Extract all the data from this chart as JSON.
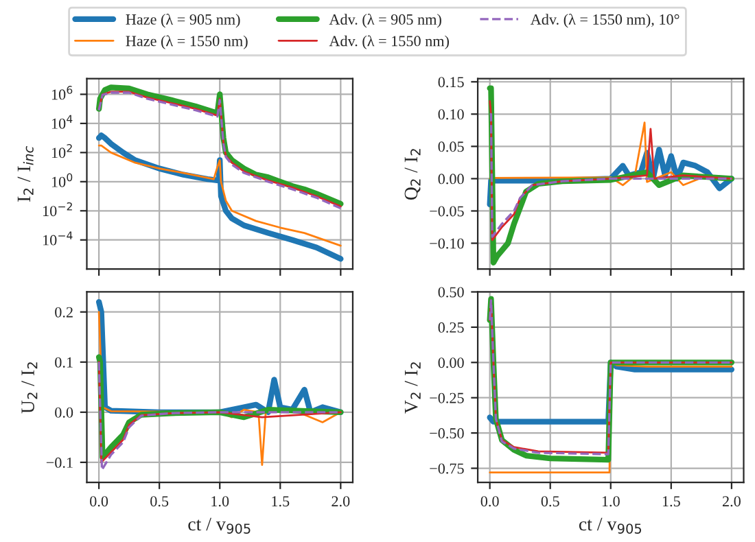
{
  "chart_data": [
    {
      "type": "line",
      "ylabel": "I$_{2}$ / I$_{inc}$",
      "log": "y",
      "xlim": [
        -0.1,
        2.1
      ],
      "xticks": [
        {
          "value": 0,
          "label": null
        },
        {
          "value": 0.5,
          "label": null
        },
        {
          "value": 1,
          "label": null
        },
        {
          "value": 1.5,
          "label": null
        },
        {
          "value": 2,
          "label": null
        }
      ],
      "ylim": [
        1e-06,
        12000000.0
      ],
      "yticks": [
        {
          "value": 0.0001,
          "label": "10$^{−4}$"
        },
        {
          "value": 0.01,
          "label": "10$^{−2}$"
        },
        {
          "value": 1,
          "label": "10$^{0}$"
        },
        {
          "value": 100,
          "label": "10$^{2}$"
        },
        {
          "value": 10000,
          "label": "10$^{4}$"
        },
        {
          "value": 1000000,
          "label": "10$^{6}$"
        }
      ],
      "grid": true,
      "legend": "top",
      "tick_labels": "y",
      "series": [
        {
          "name": "Haze (λ = 905 nm)",
          "color": "#1f77b4",
          "x": [
            0,
            0.02,
            0.05,
            0.1,
            0.2,
            0.3,
            0.5,
            0.7,
            0.9,
            0.99,
            1.0,
            1.01,
            1.05,
            1.1,
            1.2,
            1.4,
            1.6,
            1.8,
            2.0
          ],
          "values": [
            1000,
            1500,
            1000,
            400,
            100,
            30,
            8,
            3,
            1.5,
            1.2,
            30,
            0.1,
            0.01,
            0.003,
            0.001,
            0.0003,
            0.0001,
            3e-05,
            5e-06
          ]
        },
        {
          "name": "Haze (λ = 1550 nm)",
          "color": "#ff7f0e",
          "x": [
            0,
            0.02,
            0.1,
            0.3,
            0.5,
            0.7,
            0.95,
            0.98,
            1.0,
            1.01,
            1.05,
            1.1,
            1.3,
            1.5,
            1.7,
            2.0
          ],
          "values": [
            300,
            300,
            100,
            20,
            8,
            4,
            1.5,
            10,
            30,
            1,
            0.05,
            0.01,
            0.002,
            0.0007,
            0.0003,
            4e-05
          ]
        },
        {
          "name": "Adv. (λ = 905 nm)",
          "color": "#2ca02c",
          "x": [
            0,
            0.01,
            0.05,
            0.1,
            0.25,
            0.4,
            0.6,
            0.8,
            0.98,
            1.0,
            1.01,
            1.03,
            1.05,
            1.1,
            1.2,
            1.3,
            1.4,
            1.5,
            1.6,
            1.7,
            1.8,
            2.0
          ],
          "values": [
            100000,
            500000,
            2000000,
            3000000,
            2500000,
            1000000,
            400000,
            150000,
            50000,
            1000000,
            100000,
            1000,
            100,
            30,
            8,
            3,
            2,
            1,
            0.5,
            0.3,
            0.15,
            0.03
          ]
        },
        {
          "name": "Adv. (λ = 1550 nm)",
          "color": "#d62728",
          "x": [
            0,
            0.03,
            0.1,
            0.25,
            0.4,
            0.6,
            0.8,
            0.98,
            1.0,
            1.01,
            1.03,
            1.05,
            1.1,
            1.2,
            1.4,
            1.6,
            1.8,
            2.0
          ],
          "values": [
            100000,
            1000000,
            1500000,
            1500000,
            600000,
            250000,
            100000,
            35000,
            500000,
            50000,
            500,
            60,
            20,
            5,
            1.2,
            0.4,
            0.1,
            0.02
          ]
        },
        {
          "name": "Adv. (λ = 1550 nm), 10°",
          "color": "#9467bd",
          "line_style": "dashed",
          "x": [
            0,
            0.03,
            0.1,
            0.25,
            0.4,
            0.6,
            0.8,
            0.98,
            1.0,
            1.01,
            1.03,
            1.05,
            1.1,
            1.2,
            1.4,
            1.6,
            1.8,
            2.0
          ],
          "values": [
            80000,
            900000,
            1300000,
            1300000,
            500000,
            200000,
            80000,
            30000,
            400000,
            40000,
            400,
            50,
            15,
            4,
            1,
            0.3,
            0.08,
            0.015
          ]
        }
      ]
    },
    {
      "type": "line",
      "ylabel": "Q$_{2}$ / I$_{2}$",
      "xlim": [
        -0.1,
        2.1
      ],
      "xticks": [
        {
          "value": 0,
          "label": null
        },
        {
          "value": 0.5,
          "label": null
        },
        {
          "value": 1,
          "label": null
        },
        {
          "value": 1.5,
          "label": null
        },
        {
          "value": 2,
          "label": null
        }
      ],
      "ylim": [
        -0.14,
        0.155
      ],
      "yticks": [
        {
          "value": -0.1,
          "label": "−0.10"
        },
        {
          "value": -0.05,
          "label": "−0.05"
        },
        {
          "value": 0,
          "label": "0.00"
        },
        {
          "value": 0.05,
          "label": "0.05"
        },
        {
          "value": 0.1,
          "label": "0.10"
        },
        {
          "value": 0.15,
          "label": "0.15"
        }
      ],
      "grid": true,
      "tick_labels": "y",
      "series": [
        {
          "color": "#1f77b4",
          "x": [
            0,
            0.01,
            0.5,
            1.0,
            1.05,
            1.1,
            1.15,
            1.25,
            1.3,
            1.35,
            1.4,
            1.45,
            1.5,
            1.55,
            1.6,
            1.7,
            1.8,
            1.9,
            2.0
          ],
          "values": [
            -0.04,
            -0.003,
            -0.003,
            0.0,
            0.01,
            0.02,
            0.005,
            0.01,
            0.04,
            0.0,
            0.045,
            0.005,
            0.035,
            0.0,
            0.025,
            0.02,
            0.01,
            -0.015,
            0.0
          ]
        },
        {
          "color": "#ff7f0e",
          "x": [
            0,
            0.01,
            1.0,
            1.1,
            1.2,
            1.28,
            1.3,
            1.5,
            1.6,
            1.8,
            2.0
          ],
          "values": [
            0.0,
            0.001,
            0.002,
            -0.01,
            0.005,
            0.087,
            -0.005,
            0.01,
            -0.01,
            0.005,
            0.0
          ]
        },
        {
          "color": "#2ca02c",
          "x": [
            0,
            0.01,
            0.03,
            0.06,
            0.15,
            0.2,
            0.3,
            0.4,
            0.6,
            1.0,
            1.3,
            1.4,
            1.6,
            2.0
          ],
          "values": [
            0.14,
            0.14,
            -0.13,
            -0.12,
            -0.1,
            -0.07,
            -0.02,
            -0.008,
            -0.004,
            -0.002,
            0.01,
            -0.01,
            0.005,
            0.0
          ]
        },
        {
          "color": "#d62728",
          "x": [
            0,
            0.01,
            0.02,
            0.1,
            0.2,
            0.25,
            0.35,
            0.6,
            1.0,
            1.3,
            1.33,
            1.36,
            1.6,
            2.0
          ],
          "values": [
            0.12,
            0.1,
            -0.095,
            -0.075,
            -0.055,
            -0.03,
            -0.01,
            -0.004,
            0.0,
            0.005,
            0.077,
            0.0,
            0.005,
            0.0
          ]
        },
        {
          "color": "#9467bd",
          "line_style": "dashed",
          "x": [
            0,
            0.01,
            0.02,
            0.1,
            0.2,
            0.25,
            0.35,
            0.6,
            1.0,
            2.0
          ],
          "values": [
            0.1,
            0.1,
            -0.09,
            -0.07,
            -0.05,
            -0.03,
            -0.01,
            -0.004,
            0.0,
            0.0
          ]
        }
      ]
    },
    {
      "type": "line",
      "xlabel": "ct / v$_{905}$",
      "ylabel": "U$_{2}$ / I$_{2}$",
      "xlim": [
        -0.1,
        2.1
      ],
      "xticks": [
        {
          "value": 0,
          "label": "0.0"
        },
        {
          "value": 0.5,
          "label": "0.5"
        },
        {
          "value": 1,
          "label": "1.0"
        },
        {
          "value": 1.5,
          "label": "1.5"
        },
        {
          "value": 2,
          "label": "2.0"
        }
      ],
      "ylim": [
        -0.14,
        0.24
      ],
      "yticks": [
        {
          "value": -0.1,
          "label": "−0.1"
        },
        {
          "value": 0,
          "label": "0.0"
        },
        {
          "value": 0.1,
          "label": "0.1"
        },
        {
          "value": 0.2,
          "label": "0.2"
        }
      ],
      "grid": true,
      "series": [
        {
          "color": "#1f77b4",
          "x": [
            0,
            0.02,
            0.05,
            0.1,
            0.5,
            1.0,
            1.2,
            1.3,
            1.4,
            1.45,
            1.5,
            1.6,
            1.7,
            1.75,
            1.85,
            2.0
          ],
          "values": [
            0.22,
            0.2,
            0.01,
            0.003,
            0.0,
            0.0,
            0.01,
            0.015,
            0.0,
            0.065,
            0.01,
            0.005,
            0.045,
            0.0,
            0.01,
            0.0
          ]
        },
        {
          "color": "#ff7f0e",
          "x": [
            0,
            0.03,
            0.1,
            1.0,
            1.1,
            1.2,
            1.32,
            1.35,
            1.38,
            1.6,
            1.85,
            2.0
          ],
          "values": [
            0.2,
            0.01,
            0.002,
            0.0,
            -0.01,
            0.005,
            0.0,
            -0.105,
            0.0,
            0.005,
            -0.02,
            0.0
          ]
        },
        {
          "color": "#2ca02c",
          "x": [
            0,
            0.01,
            0.03,
            0.1,
            0.2,
            0.25,
            0.35,
            0.6,
            1.0,
            1.2,
            1.4,
            2.0
          ],
          "values": [
            0.11,
            0.1,
            -0.09,
            -0.07,
            -0.045,
            -0.02,
            -0.005,
            -0.002,
            0.0,
            -0.01,
            0.005,
            0.0
          ]
        },
        {
          "color": "#d62728",
          "x": [
            0,
            0.02,
            0.1,
            0.2,
            0.25,
            0.35,
            0.6,
            1.0,
            1.35,
            2.0
          ],
          "values": [
            0.1,
            -0.1,
            -0.08,
            -0.055,
            -0.025,
            -0.006,
            -0.002,
            0.0,
            -0.01,
            0.0
          ]
        },
        {
          "color": "#9467bd",
          "line_style": "dashed",
          "x": [
            0,
            0.025,
            0.1,
            0.2,
            0.25,
            0.35,
            0.6,
            1.0,
            2.0
          ],
          "values": [
            0.1,
            -0.115,
            -0.085,
            -0.06,
            -0.03,
            -0.007,
            -0.002,
            0.0,
            0.0
          ]
        }
      ]
    },
    {
      "type": "line",
      "xlabel": "ct / v$_{905}$",
      "ylabel": "V$_{2}$ / I$_{2}$",
      "xlim": [
        -0.1,
        2.1
      ],
      "xticks": [
        {
          "value": 0,
          "label": "0.0"
        },
        {
          "value": 0.5,
          "label": "0.5"
        },
        {
          "value": 1,
          "label": "1.0"
        },
        {
          "value": 1.5,
          "label": "1.5"
        },
        {
          "value": 2,
          "label": "2.0"
        }
      ],
      "ylim": [
        -0.85,
        0.5
      ],
      "yticks": [
        {
          "value": -0.75,
          "label": "−0.75"
        },
        {
          "value": -0.5,
          "label": "−0.50"
        },
        {
          "value": -0.25,
          "label": "−0.25"
        },
        {
          "value": 0,
          "label": "0.00"
        },
        {
          "value": 0.25,
          "label": "0.25"
        },
        {
          "value": 0.5,
          "label": "0.50"
        }
      ],
      "grid": true,
      "series": [
        {
          "color": "#1f77b4",
          "x": [
            0,
            0.03,
            0.98,
            1.0,
            1.05,
            1.2,
            1.5,
            2.0
          ],
          "values": [
            -0.39,
            -0.42,
            -0.42,
            0.0,
            -0.03,
            -0.05,
            -0.05,
            -0.05
          ]
        },
        {
          "color": "#ff7f0e",
          "x": [
            0,
            0.99,
            1.0,
            1.05,
            1.3,
            2.0
          ],
          "values": [
            -0.78,
            -0.78,
            0.0,
            -0.02,
            -0.03,
            -0.03
          ]
        },
        {
          "color": "#2ca02c",
          "x": [
            0,
            0.01,
            0.03,
            0.05,
            0.1,
            0.2,
            0.3,
            0.5,
            0.98,
            1.0,
            2.0
          ],
          "values": [
            0.3,
            0.45,
            0.0,
            -0.4,
            -0.55,
            -0.62,
            -0.66,
            -0.68,
            -0.69,
            0.0,
            0.0
          ]
        },
        {
          "color": "#d62728",
          "x": [
            0,
            0.01,
            0.03,
            0.05,
            0.1,
            0.2,
            0.4,
            0.98,
            1.0,
            2.0
          ],
          "values": [
            0.3,
            0.44,
            0.0,
            -0.4,
            -0.55,
            -0.6,
            -0.63,
            -0.64,
            0.0,
            0.0
          ]
        },
        {
          "color": "#9467bd",
          "line_style": "dashed",
          "x": [
            0,
            0.01,
            0.03,
            0.05,
            0.1,
            0.2,
            0.4,
            0.98,
            1.0,
            2.0
          ],
          "values": [
            0.3,
            0.44,
            0.0,
            -0.4,
            -0.56,
            -0.61,
            -0.64,
            -0.65,
            0.0,
            0.0
          ]
        }
      ]
    }
  ]
}
